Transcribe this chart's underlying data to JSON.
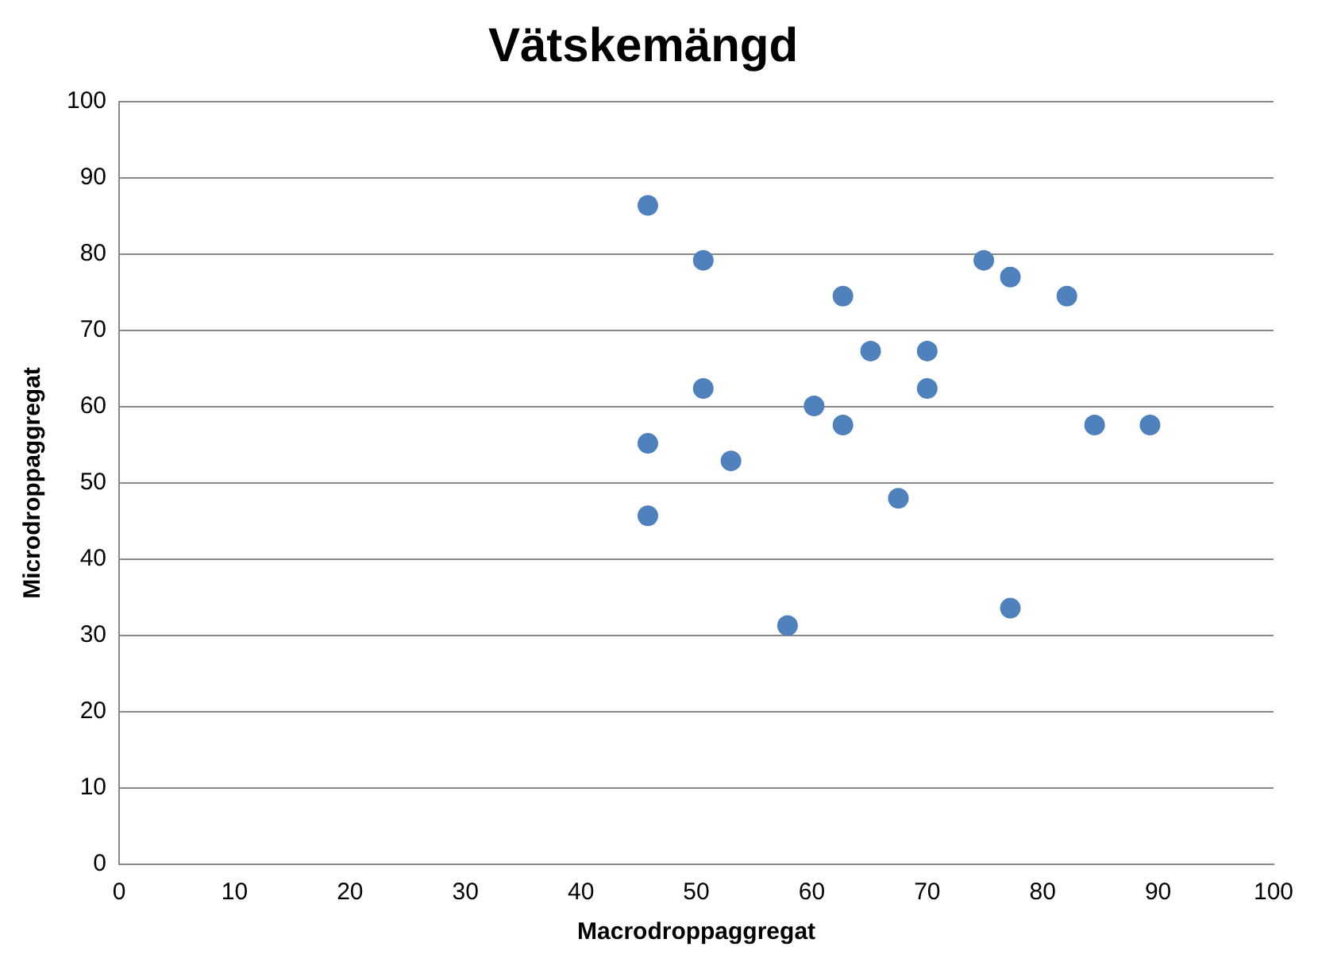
{
  "chart_data": {
    "type": "scatter",
    "title": "Vätskemängd",
    "xlabel": "Macrodroppaggregat",
    "ylabel": "Microdroppaggregat",
    "x": [
      45.8,
      50.6,
      62.7,
      74.9,
      77.2,
      82.1,
      65.1,
      70.0,
      50.6,
      70.0,
      60.2,
      62.7,
      84.5,
      89.3,
      45.8,
      53.0,
      67.5,
      45.8,
      77.2,
      57.9
    ],
    "values": [
      86.4,
      79.2,
      74.5,
      79.2,
      77.0,
      74.5,
      67.3,
      67.3,
      62.4,
      62.4,
      60.1,
      57.6,
      57.6,
      57.6,
      55.2,
      52.9,
      48.0,
      45.7,
      33.6,
      31.3
    ],
    "color": "#4f81bd",
    "marker": "circle",
    "xlim": [
      0,
      100
    ],
    "xticks": [
      0,
      10,
      20,
      30,
      40,
      50,
      60,
      70,
      80,
      90,
      100
    ],
    "ylim": [
      0,
      100
    ],
    "yticks": [
      0,
      10,
      20,
      30,
      40,
      50,
      60,
      70,
      80,
      90,
      100
    ],
    "grid": "y",
    "legend": false
  }
}
